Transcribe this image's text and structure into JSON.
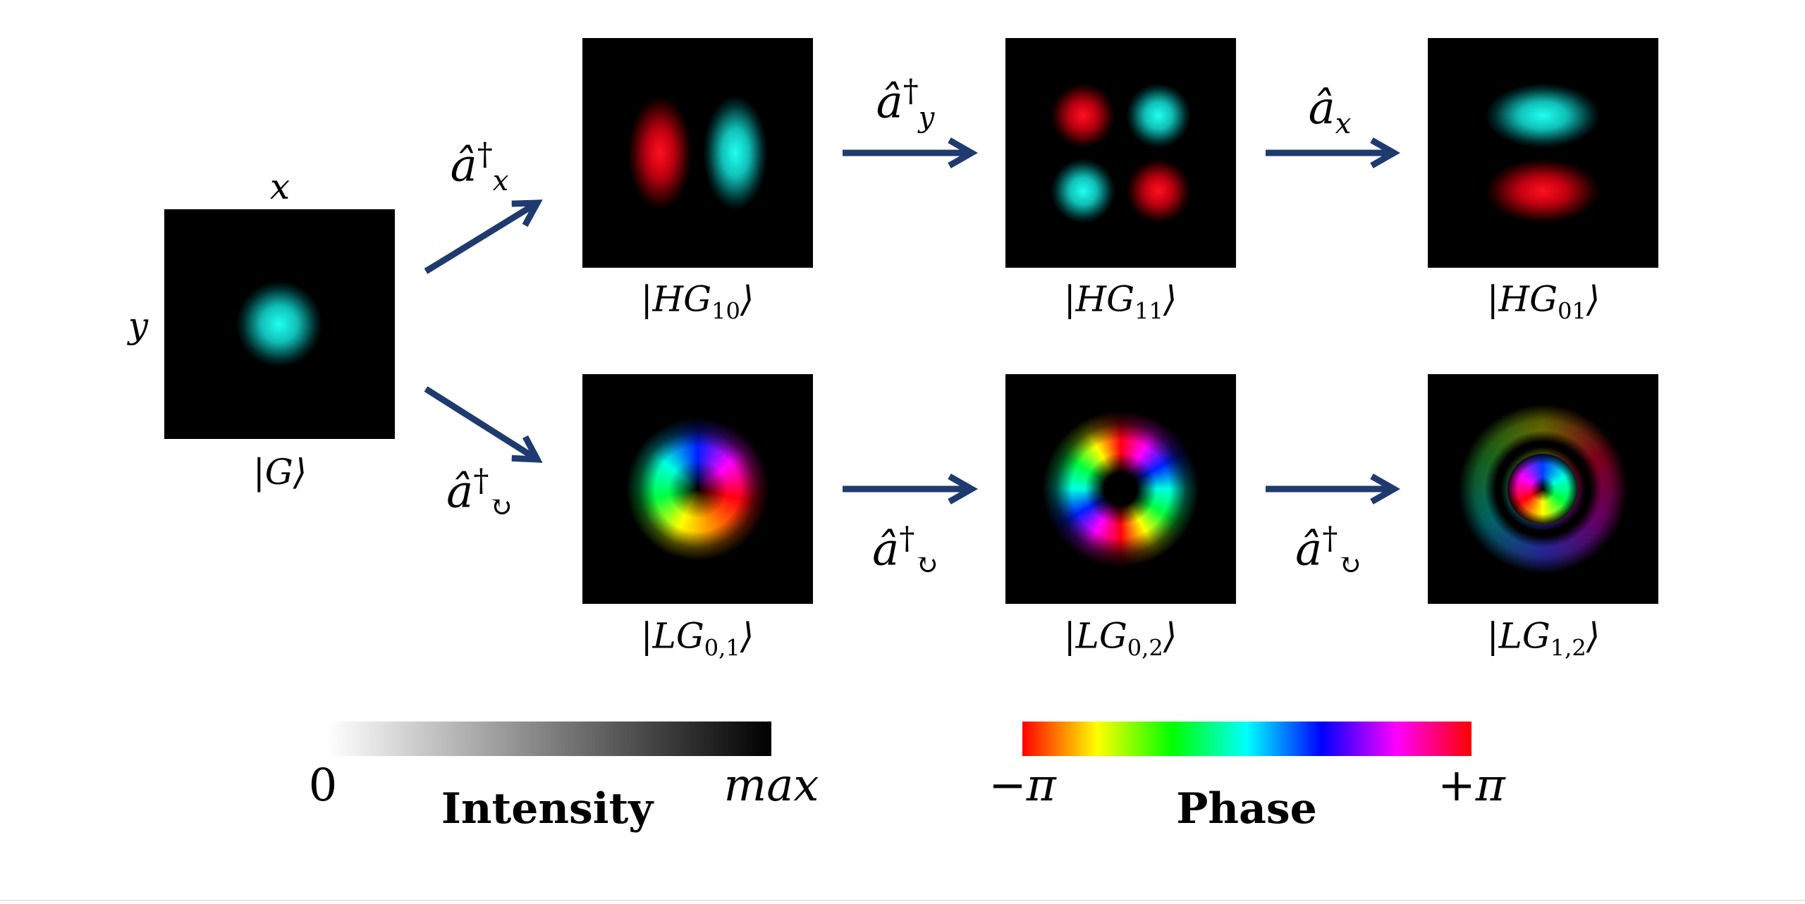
{
  "axes": {
    "x": "x",
    "y": "y"
  },
  "states": {
    "g": "|G⟩",
    "hg10": {
      "main": "|HG",
      "sub": "10",
      "close": "⟩"
    },
    "hg11": {
      "main": "|HG",
      "sub": "11",
      "close": "⟩"
    },
    "hg01": {
      "main": "|HG",
      "sub": "01",
      "close": "⟩"
    },
    "lg01": {
      "main": "|LG",
      "sub": "0,1",
      "close": "⟩"
    },
    "lg02": {
      "main": "|LG",
      "sub": "0,2",
      "close": "⟩"
    },
    "lg12": {
      "main": "|LG",
      "sub": "1,2",
      "close": "⟩"
    }
  },
  "operators": {
    "ax_dag": {
      "base": "â",
      "sup": "†",
      "sub": "x"
    },
    "ay_dag": {
      "base": "â",
      "sup": "†",
      "sub": "y"
    },
    "ax": {
      "base": "â",
      "sub": "x"
    },
    "acirc1": {
      "base": "â",
      "sup": "†",
      "sub": "↻"
    },
    "acirc2": {
      "base": "â",
      "sup": "†",
      "sub": "↻"
    },
    "acirc3": {
      "base": "â",
      "sup": "†",
      "sub": "↻"
    }
  },
  "intensity_bar": {
    "min": "0",
    "max": "max",
    "title": "Intensity"
  },
  "phase_bar": {
    "min": "−π",
    "max": "+π",
    "title": "Phase"
  },
  "colors": {
    "arrow": "#1f3a6e",
    "red": "#ff1020",
    "cyan": "#10e8e0"
  }
}
